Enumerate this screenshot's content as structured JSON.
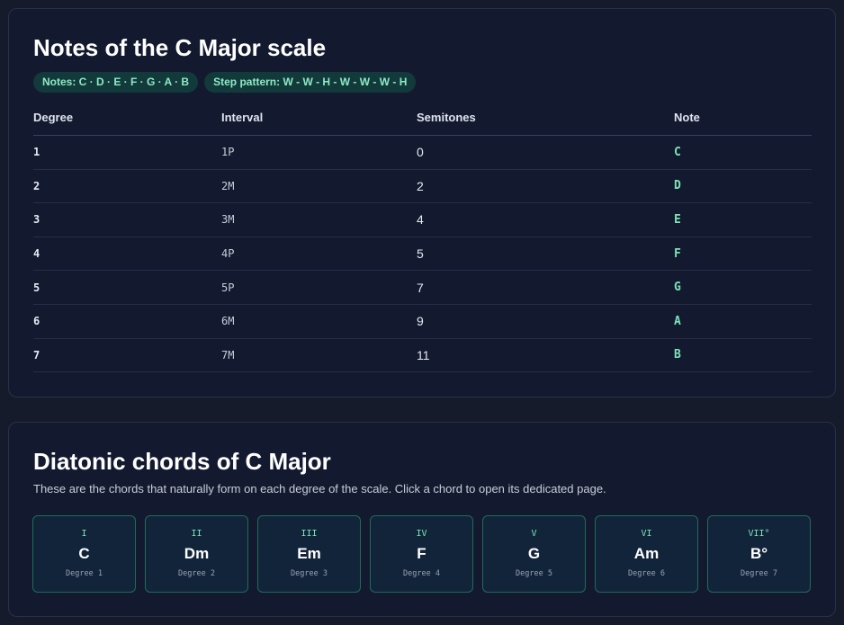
{
  "scale_card": {
    "title": "Notes of the C Major scale",
    "badge_notes": "Notes: C · D · E · F · G · A · B",
    "badge_steps": "Step pattern: W - W - H - W - W - W - H",
    "columns": [
      "Degree",
      "Interval",
      "Semitones",
      "Note"
    ],
    "rows": [
      {
        "degree": "1",
        "interval": "1P",
        "semitones": "0",
        "note": "C"
      },
      {
        "degree": "2",
        "interval": "2M",
        "semitones": "2",
        "note": "D"
      },
      {
        "degree": "3",
        "interval": "3M",
        "semitones": "4",
        "note": "E"
      },
      {
        "degree": "4",
        "interval": "4P",
        "semitones": "5",
        "note": "F"
      },
      {
        "degree": "5",
        "interval": "5P",
        "semitones": "7",
        "note": "G"
      },
      {
        "degree": "6",
        "interval": "6M",
        "semitones": "9",
        "note": "A"
      },
      {
        "degree": "7",
        "interval": "7M",
        "semitones": "11",
        "note": "B"
      }
    ]
  },
  "chords_card": {
    "title": "Diatonic chords of C Major",
    "subtitle": "These are the chords that naturally form on each degree of the scale. Click a chord to open its dedicated page.",
    "chords": [
      {
        "roman": "I",
        "name": "C",
        "degree": "Degree 1"
      },
      {
        "roman": "II",
        "name": "Dm",
        "degree": "Degree 2"
      },
      {
        "roman": "III",
        "name": "Em",
        "degree": "Degree 3"
      },
      {
        "roman": "IV",
        "name": "F",
        "degree": "Degree 4"
      },
      {
        "roman": "V",
        "name": "G",
        "degree": "Degree 5"
      },
      {
        "roman": "VI",
        "name": "Am",
        "degree": "Degree 6"
      },
      {
        "roman": "VII°",
        "name": "B°",
        "degree": "Degree 7"
      }
    ]
  },
  "colors": {
    "background": "#161b2c",
    "card": "#131a30",
    "accent": "#7ee2b8",
    "badge_bg": "#123a3a",
    "chord_border": "#1f6b58"
  }
}
